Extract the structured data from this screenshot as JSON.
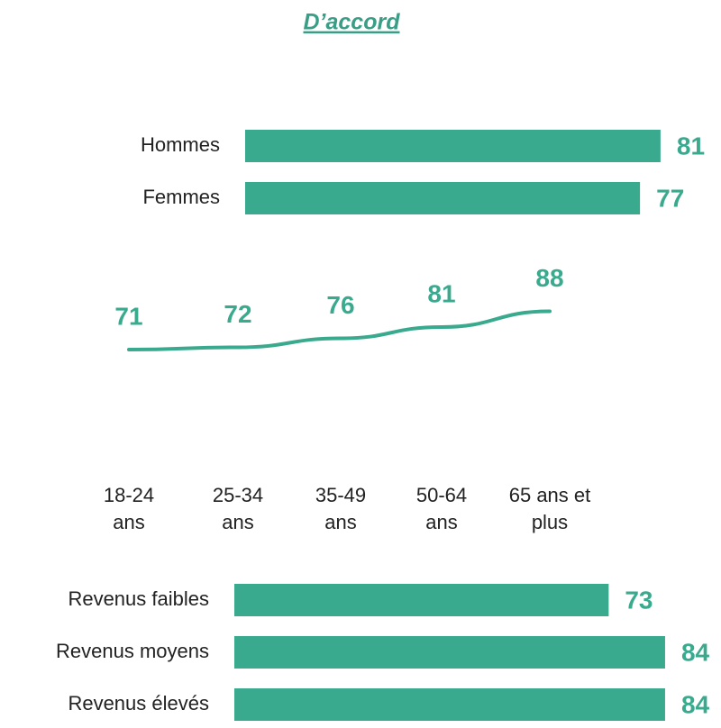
{
  "chart_data": [
    {
      "type": "bar",
      "orientation": "horizontal",
      "title": "D’accord",
      "categories": [
        "Hommes",
        "Femmes"
      ],
      "values": [
        81,
        77
      ],
      "color": "#3aaa8e"
    },
    {
      "type": "line",
      "categories": [
        "18-24\nans",
        "25-34\nans",
        "35-49\nans",
        "50-64\nans",
        "65 ans et\nplus"
      ],
      "values": [
        71,
        72,
        76,
        81,
        88
      ],
      "color": "#3aaa8e"
    },
    {
      "type": "bar",
      "orientation": "horizontal",
      "categories": [
        "Revenus faibles",
        "Revenus moyens",
        "Revenus élevés"
      ],
      "values": [
        73,
        84,
        84
      ],
      "color": "#3aaa8e"
    }
  ]
}
